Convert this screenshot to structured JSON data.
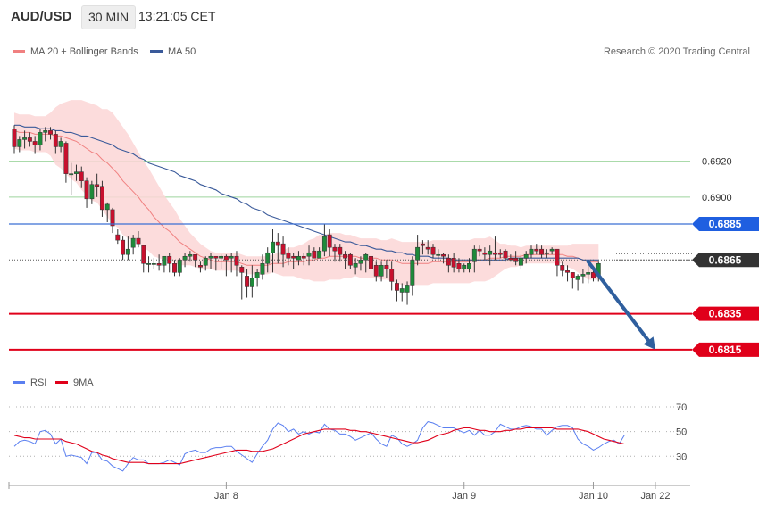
{
  "header": {
    "symbol": "AUD/USD",
    "timeframe": "30 MIN",
    "time": "13:21:05 CET"
  },
  "legend": {
    "bollinger_label": "MA 20 + Bollinger Bands",
    "ma50_label": "MA 50",
    "rsi_label": "RSI",
    "ma9_label": "9MA"
  },
  "credit": "Research © 2020 Trading Central",
  "colors": {
    "bull": "#1e8a3a",
    "bear": "#c8102e",
    "band_fill": "#fcd6d6",
    "ma20": "#f08080",
    "ma50": "#3a5a9a",
    "resistance": "#3b6fd4",
    "support": "#e0001a",
    "target_arrow": "#2f5f9e",
    "last_price_box": "#333333",
    "rsi_line": "#5a7ff0",
    "rsi_ma": "#e0001a"
  },
  "chart_data": {
    "type": "candlestick",
    "ylim": [
      0.6806,
      0.6965
    ],
    "yticks": [
      "0.6920",
      "0.6900"
    ],
    "xticks": [
      {
        "label": "Jan 8",
        "index": 41
      },
      {
        "label": "Jan 9",
        "index": 87
      },
      {
        "label": "Jan 10",
        "index": 112
      },
      {
        "label": "Jan 22",
        "index": 124
      }
    ],
    "levels": [
      {
        "label": "0.6885",
        "value": 0.6885,
        "kind": "resistance"
      },
      {
        "label": "0.6865",
        "value": 0.6865,
        "kind": "last"
      },
      {
        "label": "0.6835",
        "value": 0.6835,
        "kind": "support"
      },
      {
        "label": "0.6815",
        "value": 0.6815,
        "kind": "support"
      }
    ],
    "target_arrow": {
      "from": {
        "index": 111,
        "value": 0.6864
      },
      "to": {
        "index": 124,
        "value": 0.6815
      }
    },
    "candles": [
      [
        0.6938,
        0.694,
        0.6924,
        0.6928
      ],
      [
        0.6928,
        0.6934,
        0.6925,
        0.6932
      ],
      [
        0.6932,
        0.6937,
        0.6927,
        0.6933
      ],
      [
        0.6933,
        0.6936,
        0.6928,
        0.6931
      ],
      [
        0.6931,
        0.6934,
        0.6924,
        0.6929
      ],
      [
        0.6929,
        0.6938,
        0.6926,
        0.6936
      ],
      [
        0.6936,
        0.6939,
        0.6931,
        0.6937
      ],
      [
        0.6937,
        0.6939,
        0.6932,
        0.6935
      ],
      [
        0.6935,
        0.6937,
        0.6924,
        0.6928
      ],
      [
        0.6928,
        0.6933,
        0.6925,
        0.6931
      ],
      [
        0.693,
        0.6931,
        0.6908,
        0.6913
      ],
      [
        0.6913,
        0.6919,
        0.6901,
        0.6913
      ],
      [
        0.6913,
        0.6918,
        0.6909,
        0.6914
      ],
      [
        0.6914,
        0.6917,
        0.6905,
        0.6909
      ],
      [
        0.6909,
        0.6911,
        0.6894,
        0.6899
      ],
      [
        0.6899,
        0.6909,
        0.6896,
        0.6907
      ],
      [
        0.6907,
        0.6913,
        0.69,
        0.6906
      ],
      [
        0.6906,
        0.6909,
        0.6889,
        0.6893
      ],
      [
        0.6893,
        0.6897,
        0.6886,
        0.6896
      ],
      [
        0.6893,
        0.6894,
        0.688,
        0.6884
      ],
      [
        0.6879,
        0.6882,
        0.6874,
        0.6876
      ],
      [
        0.6876,
        0.6878,
        0.6865,
        0.6868
      ],
      [
        0.6868,
        0.6878,
        0.6865,
        0.6871
      ],
      [
        0.6872,
        0.6879,
        0.6868,
        0.6877
      ],
      [
        0.6877,
        0.6881,
        0.6872,
        0.6874
      ],
      [
        0.6873,
        0.6873,
        0.6858,
        0.6863
      ],
      [
        0.6863,
        0.6867,
        0.6858,
        0.6863
      ],
      [
        0.6863,
        0.6866,
        0.686,
        0.6863
      ],
      [
        0.6863,
        0.6868,
        0.6859,
        0.6862
      ],
      [
        0.6862,
        0.6866,
        0.6858,
        0.6867
      ],
      [
        0.6867,
        0.6869,
        0.6858,
        0.6863
      ],
      [
        0.6863,
        0.6865,
        0.6856,
        0.6858
      ],
      [
        0.6858,
        0.6866,
        0.6856,
        0.6865
      ],
      [
        0.6865,
        0.6869,
        0.6861,
        0.6867
      ],
      [
        0.6867,
        0.687,
        0.6864,
        0.6868
      ],
      [
        0.6868,
        0.6868,
        0.6861,
        0.6865
      ],
      [
        0.6862,
        0.6864,
        0.6858,
        0.6861
      ],
      [
        0.6862,
        0.6867,
        0.6859,
        0.6866
      ],
      [
        0.6866,
        0.6869,
        0.686,
        0.6867
      ],
      [
        0.6867,
        0.6867,
        0.6859,
        0.6866
      ],
      [
        0.6866,
        0.6868,
        0.686,
        0.6867
      ],
      [
        0.6867,
        0.6868,
        0.6856,
        0.6865
      ],
      [
        0.6866,
        0.6869,
        0.6858,
        0.6867
      ],
      [
        0.6867,
        0.687,
        0.6856,
        0.6862
      ],
      [
        0.6861,
        0.6862,
        0.6843,
        0.6858
      ],
      [
        0.6856,
        0.686,
        0.6844,
        0.685
      ],
      [
        0.685,
        0.6862,
        0.6844,
        0.6855
      ],
      [
        0.6855,
        0.686,
        0.685,
        0.6858
      ],
      [
        0.6857,
        0.6868,
        0.6854,
        0.6863
      ],
      [
        0.6863,
        0.6872,
        0.6858,
        0.6869
      ],
      [
        0.6869,
        0.6882,
        0.6858,
        0.6875
      ],
      [
        0.6875,
        0.688,
        0.6863,
        0.6873
      ],
      [
        0.6874,
        0.6878,
        0.6861,
        0.6868
      ],
      [
        0.6869,
        0.6872,
        0.6862,
        0.6866
      ],
      [
        0.6867,
        0.6869,
        0.686,
        0.6866
      ],
      [
        0.6865,
        0.687,
        0.6862,
        0.6867
      ],
      [
        0.6867,
        0.6869,
        0.6862,
        0.6866
      ],
      [
        0.6867,
        0.6873,
        0.6862,
        0.6869
      ],
      [
        0.687,
        0.6872,
        0.6867,
        0.6866
      ],
      [
        0.6866,
        0.6872,
        0.6866,
        0.687
      ],
      [
        0.687,
        0.6885,
        0.6867,
        0.6878
      ],
      [
        0.6879,
        0.6882,
        0.6867,
        0.6872
      ],
      [
        0.6872,
        0.6874,
        0.6864,
        0.687
      ],
      [
        0.6872,
        0.6874,
        0.6864,
        0.6868
      ],
      [
        0.6868,
        0.687,
        0.686,
        0.6866
      ],
      [
        0.6868,
        0.6869,
        0.686,
        0.6862
      ],
      [
        0.6861,
        0.6866,
        0.6857,
        0.6863
      ],
      [
        0.6863,
        0.6867,
        0.6859,
        0.6865
      ],
      [
        0.6865,
        0.6869,
        0.6858,
        0.6868
      ],
      [
        0.6867,
        0.6868,
        0.6856,
        0.686
      ],
      [
        0.6862,
        0.6864,
        0.6853,
        0.6856
      ],
      [
        0.6856,
        0.6864,
        0.6853,
        0.6862
      ],
      [
        0.6862,
        0.6865,
        0.6855,
        0.686
      ],
      [
        0.686,
        0.6864,
        0.6848,
        0.6853
      ],
      [
        0.6852,
        0.6854,
        0.6842,
        0.6848
      ],
      [
        0.6847,
        0.6852,
        0.6842,
        0.6849
      ],
      [
        0.6847,
        0.6853,
        0.684,
        0.6851
      ],
      [
        0.6851,
        0.6867,
        0.6845,
        0.6865
      ],
      [
        0.6865,
        0.6879,
        0.6862,
        0.6872
      ],
      [
        0.6874,
        0.6876,
        0.6868,
        0.6873
      ],
      [
        0.6872,
        0.6876,
        0.6868,
        0.6871
      ],
      [
        0.6872,
        0.6874,
        0.6866,
        0.6868
      ],
      [
        0.6868,
        0.6871,
        0.6864,
        0.6868
      ],
      [
        0.6868,
        0.6869,
        0.6863,
        0.6867
      ],
      [
        0.6866,
        0.6868,
        0.6858,
        0.6862
      ],
      [
        0.6866,
        0.6869,
        0.6858,
        0.6861
      ],
      [
        0.6863,
        0.6866,
        0.6858,
        0.686
      ],
      [
        0.686,
        0.6863,
        0.6858,
        0.6862
      ],
      [
        0.686,
        0.6866,
        0.6858,
        0.6863
      ],
      [
        0.6864,
        0.6873,
        0.6858,
        0.6871
      ],
      [
        0.6871,
        0.6873,
        0.6867,
        0.687
      ],
      [
        0.6869,
        0.6872,
        0.6865,
        0.6868
      ],
      [
        0.6868,
        0.6873,
        0.6862,
        0.687
      ],
      [
        0.6869,
        0.6878,
        0.6865,
        0.6868
      ],
      [
        0.6869,
        0.6871,
        0.6866,
        0.6868
      ],
      [
        0.687,
        0.6871,
        0.6864,
        0.6866
      ],
      [
        0.6866,
        0.6868,
        0.6864,
        0.6865
      ],
      [
        0.6866,
        0.687,
        0.6862,
        0.6864
      ],
      [
        0.6862,
        0.6868,
        0.686,
        0.6866
      ],
      [
        0.6866,
        0.687,
        0.6863,
        0.6868
      ],
      [
        0.6868,
        0.6873,
        0.6866,
        0.6871
      ],
      [
        0.6871,
        0.6874,
        0.6868,
        0.687
      ],
      [
        0.6871,
        0.6873,
        0.6866,
        0.6868
      ],
      [
        0.6869,
        0.6871,
        0.6866,
        0.6869
      ],
      [
        0.687,
        0.6872,
        0.6868,
        0.6871
      ],
      [
        0.6871,
        0.6871,
        0.6856,
        0.6862
      ],
      [
        0.6862,
        0.6864,
        0.6856,
        0.6859
      ],
      [
        0.6859,
        0.6862,
        0.6853,
        0.6858
      ],
      [
        0.6858,
        0.6858,
        0.6849,
        0.6855
      ],
      [
        0.6854,
        0.6857,
        0.6848,
        0.6856
      ],
      [
        0.6856,
        0.686,
        0.6852,
        0.6857
      ],
      [
        0.6857,
        0.6862,
        0.6852,
        0.6858
      ],
      [
        0.6858,
        0.686,
        0.6853,
        0.6855
      ],
      [
        0.6856,
        0.6864,
        0.6853,
        0.6863
      ]
    ],
    "ma20": [
      0.6937,
      0.6936,
      0.6936,
      0.6936,
      0.6935,
      0.6935,
      0.6935,
      0.6935,
      0.6934,
      0.6934,
      0.6933,
      0.6932,
      0.6931,
      0.6929,
      0.6927,
      0.6925,
      0.6924,
      0.6921,
      0.6919,
      0.6916,
      0.6913,
      0.6909,
      0.6906,
      0.6903,
      0.69,
      0.6896,
      0.6893,
      0.6889,
      0.6886,
      0.6883,
      0.6881,
      0.6878,
      0.6875,
      0.6873,
      0.6871,
      0.6869,
      0.6867,
      0.6866,
      0.6865,
      0.6864,
      0.6864,
      0.6864,
      0.6864,
      0.6864,
      0.6863,
      0.6862,
      0.6862,
      0.6862,
      0.6862,
      0.6862,
      0.6863,
      0.6863,
      0.6863,
      0.6864,
      0.6864,
      0.6864,
      0.6864,
      0.6865,
      0.6865,
      0.6866,
      0.6866,
      0.6867,
      0.6867,
      0.6867,
      0.6867,
      0.6867,
      0.6867,
      0.6866,
      0.6866,
      0.6866,
      0.6866,
      0.6865,
      0.6865,
      0.6865,
      0.6864,
      0.6863,
      0.6863,
      0.6863,
      0.6863,
      0.6863,
      0.6863,
      0.6864,
      0.6864,
      0.6864,
      0.6864,
      0.6864,
      0.6864,
      0.6864,
      0.6864,
      0.6865,
      0.6865,
      0.6865,
      0.6866,
      0.6866,
      0.6866,
      0.6867,
      0.6867,
      0.6867,
      0.6867,
      0.6868,
      0.6868,
      0.6868,
      0.6868,
      0.6868,
      0.6868,
      0.6868,
      0.6868,
      0.6867,
      0.6867,
      0.6866,
      0.6865,
      0.6864,
      0.6864,
      0.6864
    ],
    "ma50": [
      0.694,
      0.694,
      0.6939,
      0.6939,
      0.6939,
      0.6938,
      0.6938,
      0.6938,
      0.6937,
      0.6937,
      0.6936,
      0.6936,
      0.6935,
      0.6934,
      0.6934,
      0.6933,
      0.6932,
      0.6931,
      0.693,
      0.6929,
      0.6927,
      0.6926,
      0.6925,
      0.6924,
      0.6922,
      0.6921,
      0.6919,
      0.6918,
      0.6917,
      0.6916,
      0.6915,
      0.6914,
      0.6912,
      0.6911,
      0.691,
      0.6909,
      0.6907,
      0.6906,
      0.6905,
      0.6904,
      0.6902,
      0.6901,
      0.69,
      0.6899,
      0.6897,
      0.6896,
      0.6894,
      0.6893,
      0.6892,
      0.689,
      0.6889,
      0.6888,
      0.6887,
      0.6886,
      0.6885,
      0.6884,
      0.6883,
      0.6882,
      0.6881,
      0.688,
      0.6879,
      0.6878,
      0.6877,
      0.6876,
      0.6875,
      0.6875,
      0.6874,
      0.6873,
      0.6873,
      0.6872,
      0.6871,
      0.6871,
      0.687,
      0.687,
      0.6869,
      0.6869,
      0.6868,
      0.6868,
      0.6867,
      0.6867,
      0.6867,
      0.6866,
      0.6866,
      0.6866,
      0.6866,
      0.6865,
      0.6865,
      0.6865,
      0.6865,
      0.6865,
      0.6865,
      0.6865,
      0.6865,
      0.6865,
      0.6865,
      0.6865,
      0.6866,
      0.6866,
      0.6866,
      0.6866,
      0.6866,
      0.6866,
      0.6866,
      0.6866,
      0.6866,
      0.6866,
      0.6866,
      0.6866,
      0.6866,
      0.6866,
      0.6865,
      0.6865,
      0.6865,
      0.6865
    ],
    "band_width": [
      0.001,
      0.001,
      0.001,
      0.001,
      0.001,
      0.001,
      0.001,
      0.0012,
      0.0016,
      0.0018,
      0.002,
      0.0022,
      0.0023,
      0.0025,
      0.0026,
      0.0027,
      0.0027,
      0.0028,
      0.003,
      0.0031,
      0.003,
      0.003,
      0.0029,
      0.0027,
      0.0025,
      0.0024,
      0.0023,
      0.0022,
      0.002,
      0.0018,
      0.0016,
      0.0015,
      0.0013,
      0.0011,
      0.0009,
      0.0008,
      0.0007,
      0.0006,
      0.0005,
      0.0005,
      0.0005,
      0.0005,
      0.0005,
      0.0005,
      0.0005,
      0.0005,
      0.0005,
      0.0005,
      0.0005,
      0.0005,
      0.0005,
      0.0006,
      0.0007,
      0.0008,
      0.0008,
      0.0009,
      0.001,
      0.0011,
      0.0012,
      0.0013,
      0.0013,
      0.0013,
      0.0013,
      0.0013,
      0.0012,
      0.0012,
      0.0011,
      0.0011,
      0.0011,
      0.0011,
      0.0011,
      0.0011,
      0.0011,
      0.0012,
      0.0012,
      0.0012,
      0.0012,
      0.0012,
      0.0012,
      0.0012,
      0.0012,
      0.0012,
      0.0012,
      0.0012,
      0.0012,
      0.0012,
      0.0012,
      0.0012,
      0.0012,
      0.0012,
      0.0012,
      0.0012,
      0.0012,
      0.001,
      0.0008,
      0.0007,
      0.0006,
      0.0006,
      0.0005,
      0.0005,
      0.0005,
      0.0005,
      0.0005,
      0.0005,
      0.0005,
      0.0005,
      0.0005,
      0.0006,
      0.0007,
      0.0008,
      0.0009,
      0.001,
      0.001,
      0.001
    ],
    "rsi": {
      "ylim": [
        15,
        78
      ],
      "yticks": [
        70,
        50,
        30
      ],
      "rsi_values": [
        38,
        42,
        43,
        42,
        40,
        50,
        51,
        48,
        40,
        44,
        30,
        31,
        30,
        29,
        24,
        33,
        33,
        27,
        26,
        22,
        20,
        18,
        24,
        29,
        27,
        27,
        24,
        24,
        24,
        25,
        27,
        25,
        23,
        32,
        34,
        35,
        33,
        33,
        36,
        37,
        37,
        38,
        38,
        34,
        31,
        28,
        25,
        32,
        38,
        43,
        52,
        57,
        55,
        50,
        52,
        48,
        50,
        48,
        50,
        49,
        56,
        52,
        51,
        48,
        48,
        46,
        43,
        45,
        47,
        49,
        44,
        40,
        38,
        47,
        45,
        40,
        38,
        40,
        43,
        53,
        58,
        57,
        55,
        53,
        53,
        53,
        51,
        49,
        51,
        47,
        51,
        47,
        47,
        50,
        56,
        54,
        52,
        52,
        54,
        55,
        54,
        52,
        52,
        47,
        51,
        54,
        55,
        55,
        53,
        44,
        40,
        38,
        35,
        37,
        40,
        42,
        43,
        40,
        47
      ],
      "ma_values": [
        47,
        46,
        45,
        45,
        44,
        44,
        44,
        44,
        44,
        44,
        42,
        41,
        40,
        38,
        36,
        34,
        33,
        31,
        30,
        28,
        27,
        26,
        25,
        25,
        25,
        25,
        24,
        24,
        24,
        24,
        24,
        24,
        24,
        25,
        26,
        27,
        28,
        29,
        30,
        31,
        32,
        33,
        34,
        35,
        35,
        35,
        34,
        34,
        34,
        35,
        36,
        38,
        40,
        42,
        44,
        46,
        48,
        49,
        50,
        51,
        52,
        52,
        52,
        52,
        52,
        51,
        51,
        50,
        50,
        49,
        48,
        47,
        46,
        45,
        44,
        43,
        42,
        41,
        41,
        42,
        43,
        45,
        47,
        48,
        49,
        51,
        52,
        53,
        53,
        52,
        51,
        51,
        50,
        50,
        50,
        51,
        51,
        52,
        52,
        53,
        53,
        53,
        53,
        53,
        53,
        52,
        52,
        52,
        52,
        52,
        51,
        50,
        48,
        46,
        44,
        43,
        42,
        41,
        40
      ]
    }
  }
}
